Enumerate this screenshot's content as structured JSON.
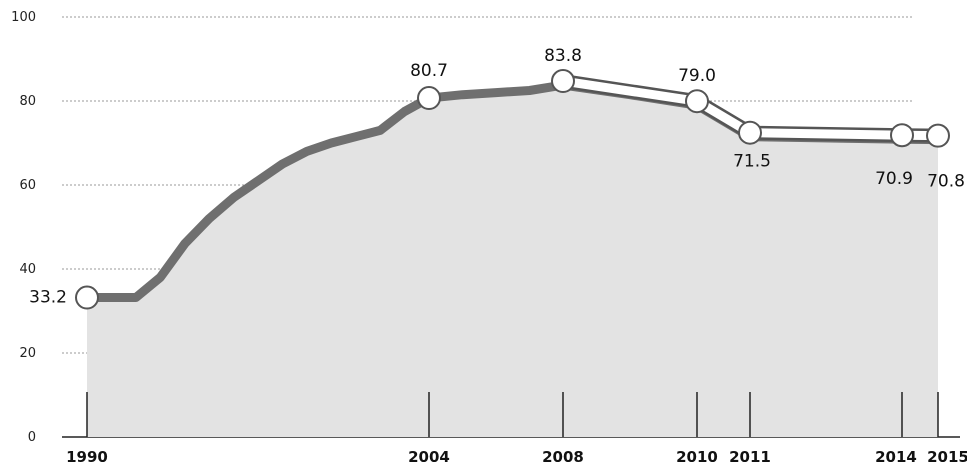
{
  "chart_data": {
    "type": "area",
    "title": "",
    "xlabel": "",
    "ylabel": "",
    "ylim": [
      0,
      100
    ],
    "yticks": [
      0,
      20,
      40,
      60,
      80,
      100
    ],
    "xticks": [
      1990,
      2004,
      2008,
      2010,
      2011,
      2014,
      2015
    ],
    "grid": true,
    "colors": {
      "area_fill": "#e3e3e3",
      "series_line": "#6f6f6f",
      "highlight_line": "#ffffff",
      "marker_fill": "#ffffff",
      "marker_stroke": "#555555",
      "grid": "#9a9a9a"
    },
    "series": [
      {
        "values_x": [
          1990,
          1991,
          1992,
          1993,
          1994,
          1995,
          1996,
          1997,
          1998,
          1999,
          2000,
          2001,
          2002,
          2003,
          2004,
          2005,
          2006,
          2007,
          2008,
          2009,
          2010,
          2011,
          2012,
          2013,
          2014,
          2015
        ],
        "values_y": [
          33.2,
          33.2,
          33.2,
          38,
          46,
          52,
          57,
          61,
          65,
          68,
          70,
          71.5,
          73,
          77.5,
          80.7,
          81.5,
          82,
          82.5,
          83.8,
          81.5,
          79.0,
          71.5,
          71.3,
          71.1,
          70.9,
          70.8
        ]
      }
    ],
    "labeled_points": [
      {
        "x": 1990,
        "y": 33.2,
        "label": "33.2"
      },
      {
        "x": 2004,
        "y": 80.7,
        "label": "80.7"
      },
      {
        "x": 2008,
        "y": 83.8,
        "label": "83.8"
      },
      {
        "x": 2010,
        "y": 79.0,
        "label": "79.0"
      },
      {
        "x": 2011,
        "y": 71.5,
        "label": "71.5"
      },
      {
        "x": 2014,
        "y": 70.9,
        "label": "70.9"
      },
      {
        "x": 2015,
        "y": 70.8,
        "label": "70.8"
      }
    ]
  }
}
